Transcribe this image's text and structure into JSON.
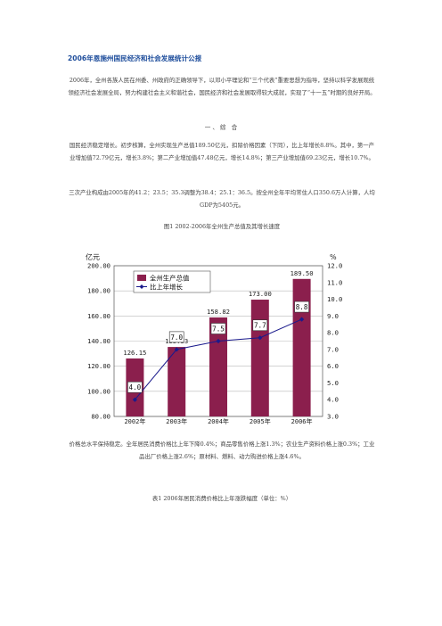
{
  "doc": {
    "title": "2006年恩施州国民经济和社会发展统计公报",
    "intro": "2006年，全州各族人民在州委、州政府的正确领导下，以邓小平理论和“三个代表”重要思想为指导，坚持以科学发展观统领经济社会发展全局，努力构建社会主义和谐社会，国民经济和社会发展取得较大成就，实现了“十一五”时期的良好开局。",
    "section1": "一、综  合",
    "p1": "国民经济稳定增长。初步核算，全州实现生产总值189.50亿元，扣除价格因素（下同），比上年增长8.8%。其中，第一产业增加值72.79亿元，增长3.8%；第二产业增加值47.48亿元，增长14.8%；第三产业增加值69.23亿元，增长10.7%。",
    "p2": "三次产业构成由2005年的41.2：23.5：35.3调整为38.4：25.1：36.5。按全州全年平均常住人口350.6万人计算，人均GDP为5405元。",
    "fig_caption": "图1  2002-2006年全州生产总值及其增长速度",
    "p3": "价格总水平保持稳定。全年居民消费价格比上年下降0.4%；商品零售价格上涨1.3%；农业生产资料价格上涨0.3%；工业品出厂价格上涨2.6%；原材料、燃料、动力购进价格上涨4.6%。",
    "table_caption": "表1  2006年居民消费价格比上年涨跌幅度（单位：%）"
  },
  "chart_data": {
    "type": "bar",
    "categories": [
      "2002年",
      "2003年",
      "2004年",
      "2005年",
      "2006年"
    ],
    "series": [
      {
        "name": "全州生产总值",
        "type": "bar",
        "axis": "left",
        "color": "#8b1f4d",
        "values": [
          126.15,
          135.33,
          158.82,
          173.0,
          189.5
        ],
        "labels": [
          "126.15",
          "135.33",
          "158.82",
          "173.00",
          "189.50"
        ]
      },
      {
        "name": "比上年增长",
        "type": "line",
        "axis": "right",
        "color": "#1a1a8c",
        "values": [
          4.0,
          7.0,
          7.5,
          7.7,
          8.8
        ],
        "labels": [
          "4.0",
          "7.0",
          "7.5",
          "7.7",
          "8.8"
        ]
      }
    ],
    "y_left": {
      "unit": "亿元",
      "min": 80,
      "max": 200,
      "step": 20,
      "ticks": [
        "80.00",
        "100.00",
        "120.00",
        "140.00",
        "160.00",
        "180.00",
        "200.00"
      ]
    },
    "y_right": {
      "unit": "%",
      "min": 3,
      "max": 12,
      "step": 1,
      "ticks": [
        "3.0",
        "4.0",
        "5.0",
        "6.0",
        "7.0",
        "8.0",
        "9.0",
        "10.0",
        "11.0",
        "12.0"
      ]
    },
    "grid": true,
    "legend": "top-left"
  }
}
